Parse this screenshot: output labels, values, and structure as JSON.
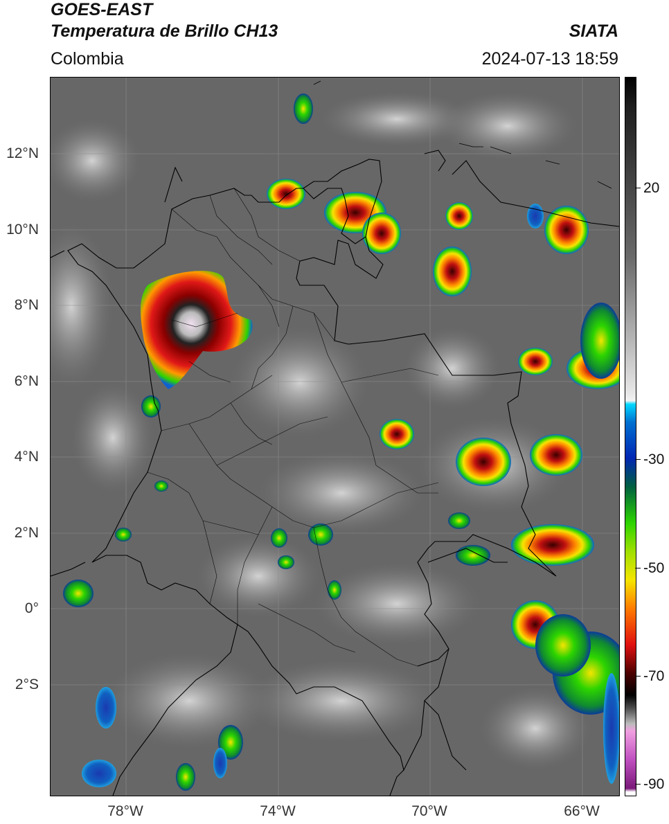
{
  "header": {
    "title_line1": "GOES-EAST",
    "title_line2": "Temperatura de Brillo CH13",
    "region": "Colombia",
    "brand": "SIATA",
    "datetime": "2024-07-13 18:59"
  },
  "map": {
    "lat_labels": [
      "12°N",
      "10°N",
      "8°N",
      "6°N",
      "4°N",
      "2°N",
      "0°",
      "2°S"
    ],
    "lon_labels": [
      "78°W",
      "74°W",
      "70°W",
      "66°W"
    ]
  },
  "colorbar": {
    "tick_labels": [
      "20",
      "-30",
      "-50",
      "-70",
      "-90"
    ],
    "colors": {
      "black": "#000000",
      "gray_dark": "#3a3a3a",
      "gray_light": "#e8e8e8",
      "cyan": "#00bfff",
      "blue": "#0026b3",
      "green": "#2cd400",
      "yellow": "#f5e500",
      "orange": "#ff7a00",
      "red": "#d61414",
      "dark_red": "#4a0000",
      "pink": "#e07ad0",
      "purple": "#8b1a8b"
    }
  }
}
